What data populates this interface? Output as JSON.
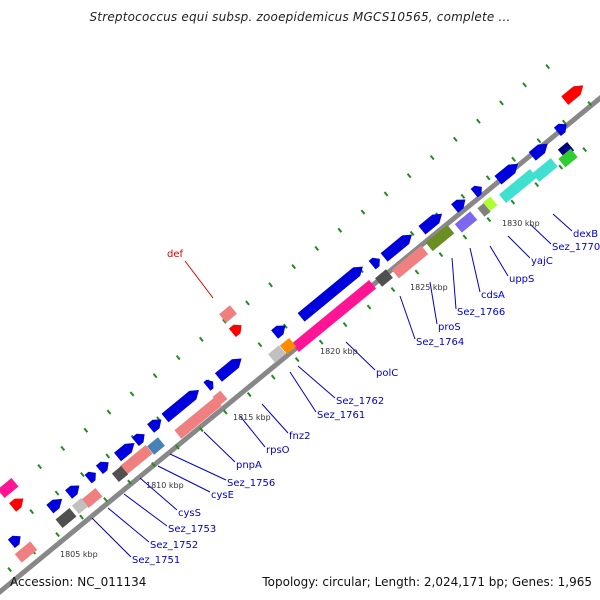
{
  "title": "Streptococcus equi subsp. zooepidemicus MGCS10565, complete ...",
  "accession": "Accession: NC_011134",
  "topology": "Topology: circular; Length: 2,024,171 bp; Genes: 1,965",
  "colors": {
    "backbone": "#888888",
    "gene_blue": "#0000dd",
    "gene_navy": "#000080",
    "gene_pink": "#f08080",
    "gene_magenta": "#ff1493",
    "gene_red": "#ff0000",
    "gene_gray": "#808080",
    "gene_darkgray": "#505050",
    "gene_lightgray": "#c0c0c0",
    "gene_olive": "#6b8e23",
    "gene_slate": "#7b68ee",
    "gene_cyan": "#40e0d0",
    "gene_green": "#32cd32",
    "gene_lime": "#adff2f",
    "gene_orange": "#ff8c00",
    "gene_steel": "#4682b4",
    "tick": "#228b22",
    "label_blue": "#0000cc",
    "label_red": "#dd0000"
  },
  "scale_labels": [
    "1805 kbp",
    "1810 kbp",
    "1815 kbp",
    "1820 kbp",
    "1825 kbp",
    "1830 kbp"
  ],
  "gene_labels": [
    {
      "text": "def",
      "color": "red"
    },
    {
      "text": "dexB",
      "color": "blue"
    },
    {
      "text": "Sez_1770",
      "color": "blue"
    },
    {
      "text": "yajC",
      "color": "blue"
    },
    {
      "text": "uppS",
      "color": "blue"
    },
    {
      "text": "cdsA",
      "color": "blue"
    },
    {
      "text": "Sez_1766",
      "color": "blue"
    },
    {
      "text": "proS",
      "color": "blue"
    },
    {
      "text": "Sez_1764",
      "color": "blue"
    },
    {
      "text": "polC",
      "color": "blue"
    },
    {
      "text": "Sez_1762",
      "color": "blue"
    },
    {
      "text": "Sez_1761",
      "color": "blue"
    },
    {
      "text": "fnz2",
      "color": "blue"
    },
    {
      "text": "rpsO",
      "color": "blue"
    },
    {
      "text": "pnpA",
      "color": "blue"
    },
    {
      "text": "Sez_1756",
      "color": "blue"
    },
    {
      "text": "cysE",
      "color": "blue"
    },
    {
      "text": "cysS",
      "color": "blue"
    },
    {
      "text": "Sez_1753",
      "color": "blue"
    },
    {
      "text": "Sez_1752",
      "color": "blue"
    },
    {
      "text": "Sez_1751",
      "color": "blue"
    }
  ]
}
